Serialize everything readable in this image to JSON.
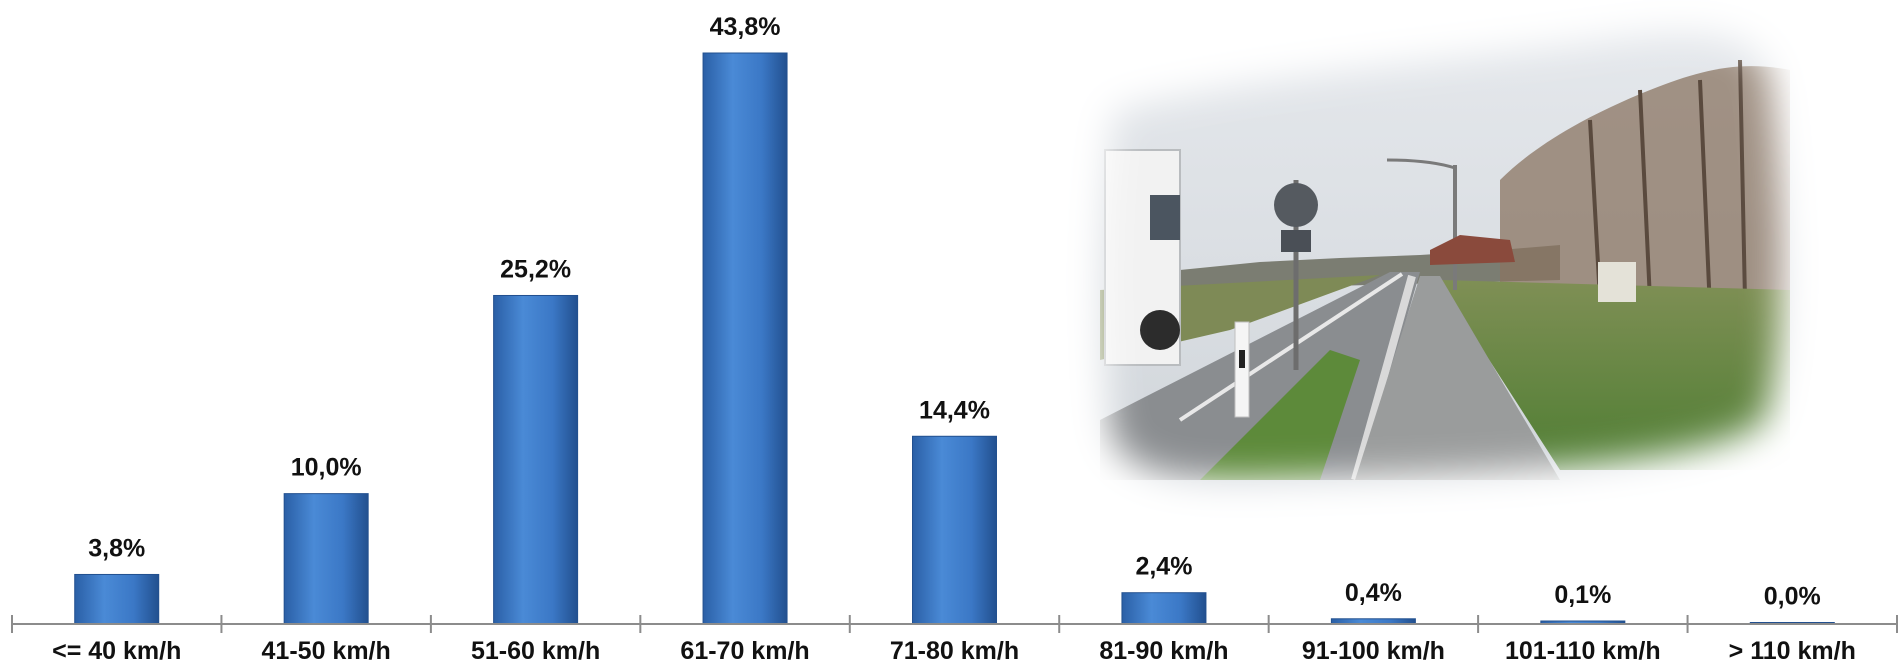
{
  "chart_data": {
    "type": "bar",
    "title": "",
    "xlabel": "",
    "ylabel": "",
    "categories": [
      "<= 40 km/h",
      "41-50 km/h",
      "51-60 km/h",
      "61-70 km/h",
      "71-80 km/h",
      "81-90 km/h",
      "91-100 km/h",
      "101-110 km/h",
      "> 110 km/h"
    ],
    "values": [
      3.8,
      10.0,
      25.2,
      43.8,
      14.4,
      2.4,
      0.4,
      0.1,
      0.0
    ],
    "data_labels": [
      "3,8%",
      "10,0%",
      "25,2%",
      "43,8%",
      "14,4%",
      "2,4%",
      "0,4%",
      "0,1%",
      "0,0%"
    ],
    "ylim": [
      0,
      43.8
    ],
    "grid": false,
    "legend": "none",
    "bar_color": "#3a78c8",
    "bar_edge_color": "#22508f"
  },
  "photo": {
    "icon": "road-photo-inset-icon",
    "sky_color": "#d8dde3",
    "grass_color": "#5d8a3a",
    "road_color": "#8a8d90"
  }
}
